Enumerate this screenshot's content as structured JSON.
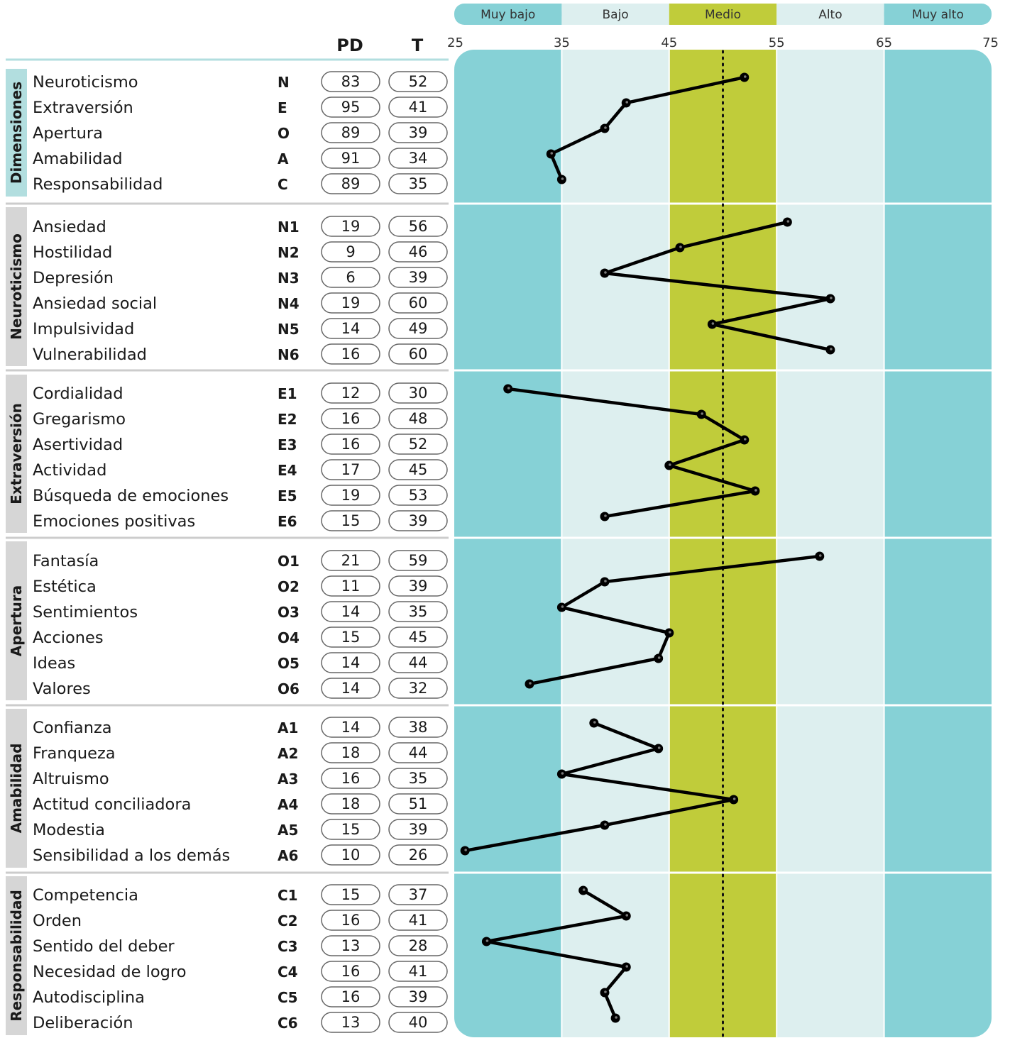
{
  "chart_data": {
    "type": "line",
    "headers": {
      "pd": "PD",
      "t": "T"
    },
    "xlim": [
      25,
      75
    ],
    "x_ticks": [
      25,
      35,
      45,
      55,
      65,
      75
    ],
    "reference_line": 50,
    "bands": [
      {
        "label": "Muy bajo",
        "from": 25,
        "to": 35,
        "color": "#86d1d6"
      },
      {
        "label": "Bajo",
        "from": 35,
        "to": 45,
        "color": "#ddefef"
      },
      {
        "label": "Medio",
        "from": 45,
        "to": 55,
        "color": "#c0cc3a"
      },
      {
        "label": "Alto",
        "from": 55,
        "to": 65,
        "color": "#ddefef"
      },
      {
        "label": "Muy alto",
        "from": 65,
        "to": 75,
        "color": "#86d1d6"
      }
    ],
    "colors": {
      "line": "#000000",
      "highlight_group_tab": "#b2dedf",
      "group_tab": "#d6d6d6"
    },
    "groups": [
      {
        "name": "Dimensiones",
        "items": [
          {
            "label": "Neuroticismo",
            "code": "N",
            "pd": 83,
            "t": 52
          },
          {
            "label": "Extraversión",
            "code": "E",
            "pd": 95,
            "t": 41
          },
          {
            "label": "Apertura",
            "code": "O",
            "pd": 89,
            "t": 39
          },
          {
            "label": "Amabilidad",
            "code": "A",
            "pd": 91,
            "t": 34
          },
          {
            "label": "Responsabilidad",
            "code": "C",
            "pd": 89,
            "t": 35
          }
        ]
      },
      {
        "name": "Neuroticismo",
        "items": [
          {
            "label": "Ansiedad",
            "code": "N1",
            "pd": 19,
            "t": 56
          },
          {
            "label": "Hostilidad",
            "code": "N2",
            "pd": 9,
            "t": 46
          },
          {
            "label": "Depresión",
            "code": "N3",
            "pd": 6,
            "t": 39
          },
          {
            "label": "Ansiedad social",
            "code": "N4",
            "pd": 19,
            "t": 60
          },
          {
            "label": "Impulsividad",
            "code": "N5",
            "pd": 14,
            "t": 49
          },
          {
            "label": "Vulnerabilidad",
            "code": "N6",
            "pd": 16,
            "t": 60
          }
        ]
      },
      {
        "name": "Extraversión",
        "items": [
          {
            "label": "Cordialidad",
            "code": "E1",
            "pd": 12,
            "t": 30
          },
          {
            "label": "Gregarismo",
            "code": "E2",
            "pd": 16,
            "t": 48
          },
          {
            "label": "Asertividad",
            "code": "E3",
            "pd": 16,
            "t": 52
          },
          {
            "label": "Actividad",
            "code": "E4",
            "pd": 17,
            "t": 45
          },
          {
            "label": "Búsqueda de emociones",
            "code": "E5",
            "pd": 19,
            "t": 53
          },
          {
            "label": "Emociones positivas",
            "code": "E6",
            "pd": 15,
            "t": 39
          }
        ]
      },
      {
        "name": "Apertura",
        "items": [
          {
            "label": "Fantasía",
            "code": "O1",
            "pd": 21,
            "t": 59
          },
          {
            "label": "Estética",
            "code": "O2",
            "pd": 11,
            "t": 39
          },
          {
            "label": "Sentimientos",
            "code": "O3",
            "pd": 14,
            "t": 35
          },
          {
            "label": "Acciones",
            "code": "O4",
            "pd": 15,
            "t": 45
          },
          {
            "label": "Ideas",
            "code": "O5",
            "pd": 14,
            "t": 44
          },
          {
            "label": "Valores",
            "code": "O6",
            "pd": 14,
            "t": 32
          }
        ]
      },
      {
        "name": "Amabilidad",
        "items": [
          {
            "label": "Confianza",
            "code": "A1",
            "pd": 14,
            "t": 38
          },
          {
            "label": "Franqueza",
            "code": "A2",
            "pd": 18,
            "t": 44
          },
          {
            "label": "Altruismo",
            "code": "A3",
            "pd": 16,
            "t": 35
          },
          {
            "label": "Actitud conciliadora",
            "code": "A4",
            "pd": 18,
            "t": 51
          },
          {
            "label": "Modestia",
            "code": "A5",
            "pd": 15,
            "t": 39
          },
          {
            "label": "Sensibilidad a los demás",
            "code": "A6",
            "pd": 10,
            "t": 26
          }
        ]
      },
      {
        "name": "Responsabilidad",
        "items": [
          {
            "label": "Competencia",
            "code": "C1",
            "pd": 15,
            "t": 37
          },
          {
            "label": "Orden",
            "code": "C2",
            "pd": 16,
            "t": 41
          },
          {
            "label": "Sentido del deber",
            "code": "C3",
            "pd": 13,
            "t": 28
          },
          {
            "label": "Necesidad de logro",
            "code": "C4",
            "pd": 16,
            "t": 41
          },
          {
            "label": "Autodisciplina",
            "code": "C5",
            "pd": 16,
            "t": 39
          },
          {
            "label": "Deliberación",
            "code": "C6",
            "pd": 13,
            "t": 40
          }
        ]
      }
    ]
  }
}
